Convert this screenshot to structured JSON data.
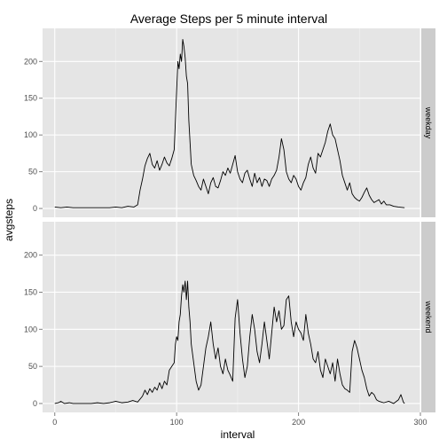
{
  "chart_data": {
    "type": "line",
    "title": "Average Steps per 5 minute interval",
    "xlabel": "interval",
    "ylabel": "avgsteps",
    "xlim": [
      -10,
      300
    ],
    "ylim": [
      -12,
      245
    ],
    "x_ticks": [
      0,
      100,
      200,
      300
    ],
    "y_ticks": [
      0,
      50,
      100,
      150,
      200
    ],
    "grid": true,
    "facets": [
      {
        "label": "weekday",
        "points": [
          [
            0,
            2
          ],
          [
            5,
            1
          ],
          [
            10,
            2
          ],
          [
            15,
            1
          ],
          [
            20,
            1
          ],
          [
            25,
            1
          ],
          [
            30,
            1
          ],
          [
            35,
            1
          ],
          [
            40,
            1
          ],
          [
            45,
            1
          ],
          [
            50,
            2
          ],
          [
            55,
            1
          ],
          [
            60,
            3
          ],
          [
            65,
            2
          ],
          [
            68,
            5
          ],
          [
            70,
            25
          ],
          [
            72,
            40
          ],
          [
            74,
            58
          ],
          [
            76,
            68
          ],
          [
            78,
            75
          ],
          [
            80,
            60
          ],
          [
            82,
            55
          ],
          [
            84,
            65
          ],
          [
            86,
            52
          ],
          [
            88,
            60
          ],
          [
            90,
            70
          ],
          [
            92,
            62
          ],
          [
            94,
            58
          ],
          [
            96,
            68
          ],
          [
            98,
            80
          ],
          [
            99,
            120
          ],
          [
            100,
            160
          ],
          [
            101,
            200
          ],
          [
            102,
            190
          ],
          [
            103,
            210
          ],
          [
            104,
            200
          ],
          [
            105,
            230
          ],
          [
            106,
            220
          ],
          [
            107,
            205
          ],
          [
            108,
            180
          ],
          [
            109,
            170
          ],
          [
            110,
            120
          ],
          [
            111,
            90
          ],
          [
            112,
            60
          ],
          [
            114,
            45
          ],
          [
            116,
            38
          ],
          [
            118,
            30
          ],
          [
            120,
            25
          ],
          [
            122,
            40
          ],
          [
            124,
            30
          ],
          [
            126,
            20
          ],
          [
            128,
            35
          ],
          [
            130,
            42
          ],
          [
            132,
            30
          ],
          [
            134,
            28
          ],
          [
            136,
            38
          ],
          [
            138,
            50
          ],
          [
            140,
            45
          ],
          [
            142,
            55
          ],
          [
            144,
            48
          ],
          [
            146,
            60
          ],
          [
            148,
            72
          ],
          [
            150,
            50
          ],
          [
            152,
            40
          ],
          [
            154,
            35
          ],
          [
            156,
            48
          ],
          [
            158,
            52
          ],
          [
            160,
            40
          ],
          [
            162,
            30
          ],
          [
            164,
            48
          ],
          [
            166,
            35
          ],
          [
            168,
            42
          ],
          [
            170,
            30
          ],
          [
            172,
            40
          ],
          [
            174,
            38
          ],
          [
            176,
            30
          ],
          [
            178,
            40
          ],
          [
            180,
            45
          ],
          [
            182,
            52
          ],
          [
            184,
            70
          ],
          [
            186,
            95
          ],
          [
            188,
            80
          ],
          [
            190,
            50
          ],
          [
            192,
            40
          ],
          [
            194,
            35
          ],
          [
            196,
            45
          ],
          [
            198,
            40
          ],
          [
            200,
            30
          ],
          [
            202,
            25
          ],
          [
            204,
            35
          ],
          [
            206,
            42
          ],
          [
            208,
            60
          ],
          [
            210,
            70
          ],
          [
            212,
            55
          ],
          [
            214,
            48
          ],
          [
            216,
            75
          ],
          [
            218,
            70
          ],
          [
            220,
            80
          ],
          [
            222,
            90
          ],
          [
            224,
            105
          ],
          [
            226,
            115
          ],
          [
            228,
            100
          ],
          [
            230,
            95
          ],
          [
            232,
            80
          ],
          [
            234,
            65
          ],
          [
            236,
            45
          ],
          [
            238,
            35
          ],
          [
            240,
            25
          ],
          [
            242,
            35
          ],
          [
            244,
            20
          ],
          [
            246,
            15
          ],
          [
            248,
            12
          ],
          [
            250,
            10
          ],
          [
            252,
            15
          ],
          [
            254,
            22
          ],
          [
            256,
            28
          ],
          [
            258,
            18
          ],
          [
            260,
            12
          ],
          [
            262,
            8
          ],
          [
            264,
            10
          ],
          [
            266,
            12
          ],
          [
            268,
            6
          ],
          [
            270,
            10
          ],
          [
            272,
            5
          ],
          [
            275,
            5
          ],
          [
            278,
            3
          ],
          [
            282,
            2
          ],
          [
            287,
            1
          ]
        ]
      },
      {
        "label": "weekend",
        "points": [
          [
            0,
            0
          ],
          [
            3,
            1
          ],
          [
            5,
            3
          ],
          [
            8,
            0
          ],
          [
            12,
            1
          ],
          [
            15,
            0
          ],
          [
            20,
            0
          ],
          [
            25,
            0
          ],
          [
            30,
            0
          ],
          [
            35,
            1
          ],
          [
            40,
            0
          ],
          [
            45,
            1
          ],
          [
            50,
            3
          ],
          [
            55,
            1
          ],
          [
            60,
            2
          ],
          [
            64,
            4
          ],
          [
            68,
            2
          ],
          [
            72,
            10
          ],
          [
            74,
            18
          ],
          [
            76,
            12
          ],
          [
            78,
            20
          ],
          [
            80,
            15
          ],
          [
            82,
            22
          ],
          [
            84,
            18
          ],
          [
            86,
            28
          ],
          [
            88,
            20
          ],
          [
            90,
            30
          ],
          [
            92,
            25
          ],
          [
            94,
            45
          ],
          [
            96,
            50
          ],
          [
            98,
            55
          ],
          [
            99,
            80
          ],
          [
            100,
            90
          ],
          [
            101,
            85
          ],
          [
            102,
            110
          ],
          [
            103,
            120
          ],
          [
            104,
            145
          ],
          [
            105,
            160
          ],
          [
            106,
            150
          ],
          [
            107,
            165
          ],
          [
            108,
            140
          ],
          [
            109,
            165
          ],
          [
            110,
            130
          ],
          [
            111,
            110
          ],
          [
            112,
            80
          ],
          [
            114,
            55
          ],
          [
            116,
            30
          ],
          [
            118,
            18
          ],
          [
            120,
            25
          ],
          [
            122,
            50
          ],
          [
            124,
            75
          ],
          [
            126,
            90
          ],
          [
            128,
            110
          ],
          [
            130,
            80
          ],
          [
            132,
            60
          ],
          [
            134,
            75
          ],
          [
            136,
            50
          ],
          [
            138,
            40
          ],
          [
            140,
            60
          ],
          [
            142,
            45
          ],
          [
            144,
            38
          ],
          [
            146,
            30
          ],
          [
            148,
            115
          ],
          [
            150,
            140
          ],
          [
            152,
            95
          ],
          [
            154,
            60
          ],
          [
            156,
            35
          ],
          [
            158,
            50
          ],
          [
            160,
            90
          ],
          [
            162,
            120
          ],
          [
            164,
            100
          ],
          [
            166,
            70
          ],
          [
            168,
            55
          ],
          [
            170,
            80
          ],
          [
            172,
            110
          ],
          [
            174,
            85
          ],
          [
            176,
            60
          ],
          [
            178,
            95
          ],
          [
            180,
            130
          ],
          [
            182,
            110
          ],
          [
            184,
            125
          ],
          [
            186,
            100
          ],
          [
            188,
            105
          ],
          [
            190,
            140
          ],
          [
            192,
            145
          ],
          [
            194,
            110
          ],
          [
            196,
            90
          ],
          [
            198,
            110
          ],
          [
            200,
            100
          ],
          [
            202,
            95
          ],
          [
            204,
            85
          ],
          [
            206,
            120
          ],
          [
            208,
            95
          ],
          [
            210,
            80
          ],
          [
            212,
            60
          ],
          [
            214,
            55
          ],
          [
            216,
            70
          ],
          [
            218,
            45
          ],
          [
            220,
            35
          ],
          [
            222,
            60
          ],
          [
            224,
            50
          ],
          [
            226,
            40
          ],
          [
            228,
            55
          ],
          [
            230,
            30
          ],
          [
            232,
            60
          ],
          [
            234,
            40
          ],
          [
            236,
            25
          ],
          [
            238,
            20
          ],
          [
            240,
            18
          ],
          [
            242,
            15
          ],
          [
            244,
            70
          ],
          [
            246,
            85
          ],
          [
            248,
            75
          ],
          [
            250,
            60
          ],
          [
            252,
            45
          ],
          [
            254,
            35
          ],
          [
            256,
            20
          ],
          [
            258,
            10
          ],
          [
            260,
            15
          ],
          [
            262,
            12
          ],
          [
            264,
            5
          ],
          [
            266,
            3
          ],
          [
            268,
            2
          ],
          [
            270,
            1
          ],
          [
            274,
            3
          ],
          [
            278,
            0
          ],
          [
            282,
            5
          ],
          [
            284,
            12
          ],
          [
            286,
            2
          ],
          [
            287,
            0
          ]
        ]
      }
    ],
    "colors": {
      "panel_bg": "#e5e5e5",
      "grid_major": "#ffffff",
      "grid_minor": "#f2f2f2",
      "strip_bg": "#cccccc",
      "line": "#000000",
      "tick": "#7f7f7f"
    }
  }
}
